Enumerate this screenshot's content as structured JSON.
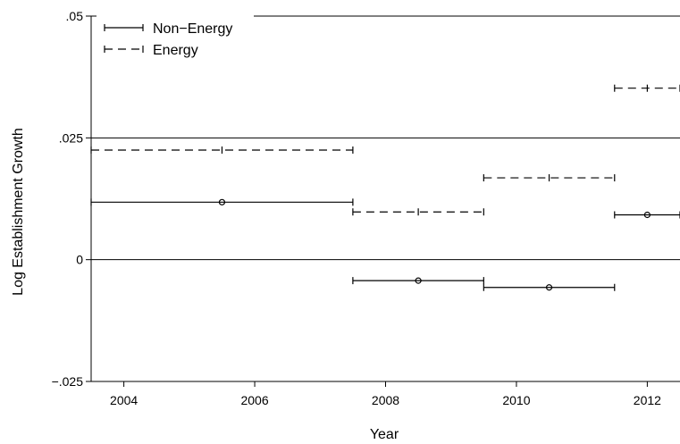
{
  "chart_data": {
    "type": "scatter",
    "title": "",
    "xlabel": "Year",
    "ylabel": "Log Establishment Growth",
    "xlim": [
      2003.5,
      2012.5
    ],
    "ylim": [
      -0.025,
      0.05
    ],
    "grid": true,
    "legend_position": "top-left",
    "x_ticks": [
      {
        "value": 2004,
        "label": "2004"
      },
      {
        "value": 2006,
        "label": "2006"
      },
      {
        "value": 2008,
        "label": "2008"
      },
      {
        "value": 2010,
        "label": "2010"
      },
      {
        "value": 2012,
        "label": "2012"
      }
    ],
    "y_ticks": [
      {
        "value": 0.05,
        "label": ".05"
      },
      {
        "value": 0.025,
        "label": ".025"
      },
      {
        "value": 0,
        "label": "0"
      },
      {
        "value": -0.025,
        "label": "−.025"
      }
    ],
    "series": [
      {
        "name": "Non−Energy",
        "line_style": "solid",
        "marker": "circle",
        "points": [
          {
            "x_start": 2003.5,
            "x_end": 2007.5,
            "x_mid": 2005.5,
            "y": 0.0118
          },
          {
            "x_start": 2007.5,
            "x_end": 2009.5,
            "x_mid": 2008.5,
            "y": -0.0043
          },
          {
            "x_start": 2009.5,
            "x_end": 2011.5,
            "x_mid": 2010.5,
            "y": -0.0057
          },
          {
            "x_start": 2011.5,
            "x_end": 2012.5,
            "x_mid": 2012.0,
            "y": 0.0092
          }
        ]
      },
      {
        "name": "Energy",
        "line_style": "dashed",
        "marker": "plus",
        "points": [
          {
            "x_start": 2003.5,
            "x_end": 2007.5,
            "x_mid": 2005.5,
            "y": 0.0225
          },
          {
            "x_start": 2007.5,
            "x_end": 2009.5,
            "x_mid": 2008.5,
            "y": 0.0098
          },
          {
            "x_start": 2009.5,
            "x_end": 2011.5,
            "x_mid": 2010.5,
            "y": 0.0168
          },
          {
            "x_start": 2011.5,
            "x_end": 2012.5,
            "x_mid": 2012.0,
            "y": 0.0352
          }
        ]
      }
    ]
  },
  "colors": {
    "axis": "#000000",
    "grid": "#000000",
    "series": "#000000",
    "background": "#ffffff"
  }
}
